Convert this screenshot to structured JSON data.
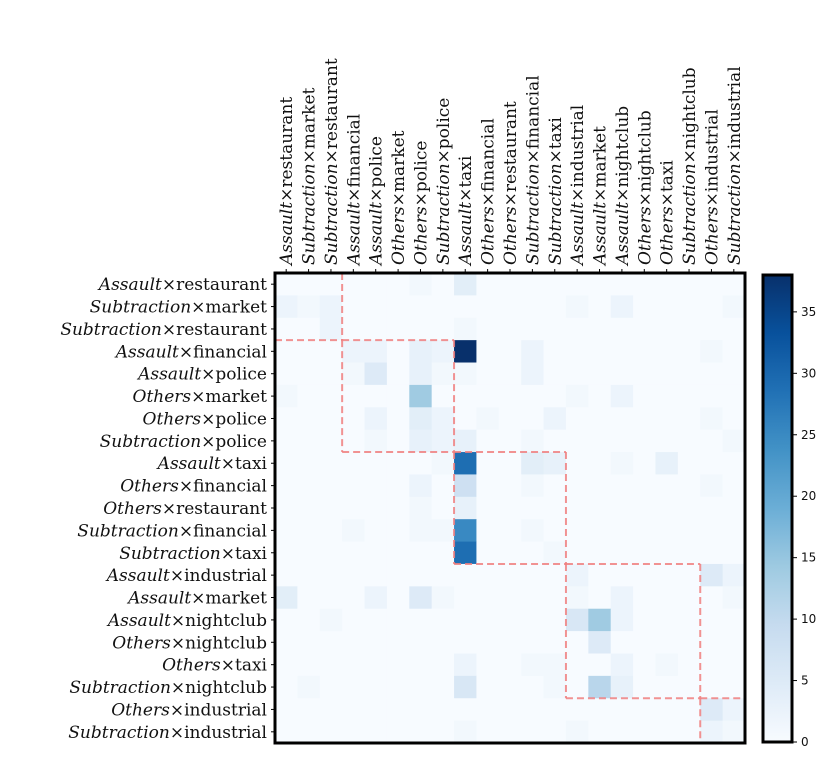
{
  "chart_data": {
    "type": "heatmap",
    "title": "",
    "labels": [
      {
        "crime": "Assault",
        "place": "restaurant"
      },
      {
        "crime": "Subtraction",
        "place": "market"
      },
      {
        "crime": "Subtraction",
        "place": "restaurant"
      },
      {
        "crime": "Assault",
        "place": "financial"
      },
      {
        "crime": "Assault",
        "place": "police"
      },
      {
        "crime": "Others",
        "place": "market"
      },
      {
        "crime": "Others",
        "place": "police"
      },
      {
        "crime": "Subtraction",
        "place": "police"
      },
      {
        "crime": "Assault",
        "place": "taxi"
      },
      {
        "crime": "Others",
        "place": "financial"
      },
      {
        "crime": "Others",
        "place": "restaurant"
      },
      {
        "crime": "Subtraction",
        "place": "financial"
      },
      {
        "crime": "Subtraction",
        "place": "taxi"
      },
      {
        "crime": "Assault",
        "place": "industrial"
      },
      {
        "crime": "Assault",
        "place": "market"
      },
      {
        "crime": "Assault",
        "place": "nightclub"
      },
      {
        "crime": "Others",
        "place": "nightclub"
      },
      {
        "crime": "Others",
        "place": "taxi"
      },
      {
        "crime": "Subtraction",
        "place": "nightclub"
      },
      {
        "crime": "Others",
        "place": "industrial"
      },
      {
        "crime": "Subtraction",
        "place": "industrial"
      }
    ],
    "cross_symbol": "×",
    "matrix": [
      [
        0,
        0,
        0,
        0,
        0,
        0,
        1,
        0,
        4,
        0,
        0,
        0,
        0,
        0,
        0,
        0,
        0,
        0,
        0,
        0,
        0
      ],
      [
        2,
        1,
        2,
        0,
        0,
        0,
        0,
        0,
        0,
        0,
        0,
        0,
        0,
        1,
        0,
        2,
        0,
        0,
        0,
        0,
        1
      ],
      [
        0,
        0,
        2,
        0,
        0,
        0,
        0,
        0,
        1,
        0,
        0,
        0,
        0,
        0,
        0,
        0,
        0,
        0,
        0,
        0,
        0
      ],
      [
        0,
        0,
        0,
        2,
        2,
        0,
        3,
        2,
        38,
        0,
        0,
        2,
        0,
        0,
        0,
        0,
        0,
        0,
        0,
        1,
        0
      ],
      [
        0,
        0,
        0,
        1,
        5,
        0,
        3,
        1,
        1,
        0,
        0,
        2,
        0,
        0,
        0,
        0,
        0,
        0,
        0,
        0,
        0
      ],
      [
        1,
        0,
        0,
        0,
        0,
        0,
        14,
        0,
        0,
        0,
        0,
        0,
        0,
        1,
        0,
        2,
        0,
        0,
        0,
        0,
        0
      ],
      [
        0,
        0,
        0,
        0,
        2,
        0,
        4,
        2,
        0,
        1,
        0,
        0,
        2,
        0,
        0,
        0,
        0,
        0,
        0,
        1,
        0
      ],
      [
        0,
        0,
        0,
        0,
        1,
        0,
        3,
        2,
        3,
        0,
        0,
        1,
        0,
        0,
        0,
        0,
        0,
        0,
        0,
        0,
        1
      ],
      [
        0,
        0,
        0,
        0,
        0,
        0,
        0,
        1,
        29,
        0,
        0,
        4,
        3,
        0,
        0,
        1,
        0,
        3,
        0,
        0,
        0
      ],
      [
        0,
        0,
        0,
        0,
        0,
        0,
        2,
        0,
        8,
        0,
        0,
        1,
        0,
        0,
        0,
        0,
        0,
        0,
        0,
        1,
        0
      ],
      [
        0,
        0,
        0,
        0,
        0,
        0,
        1,
        0,
        3,
        0,
        0,
        0,
        0,
        0,
        0,
        0,
        0,
        0,
        0,
        0,
        0
      ],
      [
        0,
        0,
        0,
        1,
        0,
        0,
        1,
        1,
        25,
        0,
        0,
        1,
        0,
        0,
        0,
        0,
        0,
        0,
        0,
        0,
        0
      ],
      [
        0,
        0,
        0,
        0,
        0,
        0,
        0,
        0,
        29,
        0,
        0,
        0,
        1,
        0,
        0,
        0,
        0,
        0,
        0,
        0,
        0
      ],
      [
        0,
        0,
        0,
        0,
        0,
        0,
        0,
        0,
        0,
        0,
        0,
        0,
        0,
        2,
        0,
        0,
        0,
        0,
        0,
        5,
        2
      ],
      [
        4,
        0,
        0,
        0,
        2,
        0,
        5,
        1,
        0,
        0,
        0,
        0,
        0,
        1,
        0,
        2,
        0,
        0,
        0,
        0,
        1
      ],
      [
        0,
        0,
        1,
        0,
        0,
        0,
        0,
        0,
        0,
        0,
        0,
        0,
        0,
        6,
        14,
        2,
        0,
        0,
        0,
        0,
        0
      ],
      [
        0,
        0,
        0,
        0,
        0,
        0,
        0,
        0,
        0,
        0,
        0,
        0,
        0,
        0,
        5,
        0,
        0,
        0,
        0,
        0,
        0
      ],
      [
        0,
        0,
        0,
        0,
        0,
        0,
        0,
        0,
        2,
        0,
        0,
        1,
        1,
        0,
        0,
        2,
        0,
        1,
        0,
        0,
        0
      ],
      [
        0,
        1,
        0,
        0,
        0,
        0,
        0,
        0,
        6,
        0,
        0,
        0,
        1,
        0,
        11,
        3,
        0,
        0,
        0,
        0,
        0
      ],
      [
        0,
        0,
        0,
        0,
        0,
        0,
        0,
        0,
        0,
        0,
        0,
        0,
        0,
        0,
        0,
        0,
        0,
        0,
        0,
        5,
        2
      ],
      [
        0,
        0,
        0,
        0,
        0,
        0,
        0,
        0,
        1,
        0,
        0,
        0,
        0,
        1,
        0,
        0,
        0,
        0,
        0,
        2,
        1
      ]
    ],
    "blocks": [
      [
        0,
        2
      ],
      [
        3,
        7
      ],
      [
        8,
        12
      ],
      [
        13,
        18
      ],
      [
        19,
        20
      ]
    ],
    "colorbar": {
      "min": 0,
      "max": 38,
      "ticks": [
        0,
        5,
        10,
        15,
        20,
        25,
        30,
        35
      ]
    },
    "colormap": "Blues",
    "block_border_color": "#f08080"
  }
}
